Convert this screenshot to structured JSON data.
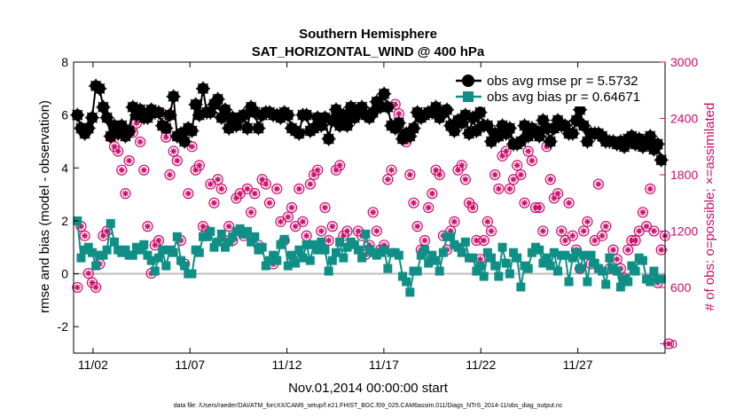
{
  "chart_data": {
    "type": "line",
    "title": "Southern Hemisphere",
    "subtitle": "SAT_HORIZONTAL_WIND @ 400 hPa",
    "xlabel": "Nov.01,2014 00:00:00 start",
    "ylabel": "rmse and bias (model - observation)",
    "ylabel_right": "# of obs: o=possible; ×=assimilated",
    "x_tick_labels": [
      "11/02",
      "11/07",
      "11/12",
      "11/17",
      "11/22",
      "11/27"
    ],
    "x_tick_days": [
      1,
      6,
      11,
      16,
      21,
      26
    ],
    "xlim_days": [
      0,
      30.5
    ],
    "ylim": [
      -3,
      8
    ],
    "y_ticks": [
      -2,
      0,
      2,
      4,
      6,
      8
    ],
    "ylim_right": [
      -100,
      3000
    ],
    "y_ticks_right": [
      0,
      600,
      1200,
      1800,
      2400,
      3000
    ],
    "grid": false,
    "legend_position": "top-right",
    "footnote": "data file: /Users/raeder/DAI/ATM_forcXX/CAM6_setup/f.e21.FHIST_BGC.f09_025.CAM6assim.011/Diags_NTrS_2014-11/obs_diag_output.nc",
    "colors": {
      "rmse": "#000000",
      "bias": "#0f8f86",
      "count": "#cc0b6a",
      "zero_line": "#bdbdbd"
    },
    "series": [
      {
        "name": "obs avg rmse pr = 5.5732",
        "axis": "left",
        "values": [
          6.0,
          5.5,
          5.3,
          5.5,
          5.9,
          7.1,
          7.0,
          6.3,
          5.9,
          5.2,
          5.6,
          5.3,
          5.6,
          5.2,
          5.4,
          6.3,
          6.0,
          6.2,
          5.9,
          5.9,
          6.2,
          6.1,
          6.1,
          5.6,
          5.5,
          6.0,
          6.7,
          5.2,
          5.3,
          5.0,
          5.5,
          5.4,
          6.4,
          6.0,
          7.0,
          6.1,
          6.1,
          6.4,
          6.6,
          5.9,
          6.2,
          5.5,
          5.9,
          5.6,
          5.9,
          6.0,
          5.5,
          6.3,
          6.1,
          5.5,
          6.0,
          6.1,
          6.1,
          6.0,
          6.0,
          5.9,
          6.1,
          6.0,
          5.5,
          5.4,
          5.3,
          6.0,
          6.0,
          5.4,
          5.5,
          5.9,
          5.6,
          5.9,
          5.1,
          5.8,
          6.2,
          5.6,
          6.0,
          5.6,
          6.3,
          5.9,
          6.2,
          6.3,
          6.0,
          5.9,
          6.1,
          6.5,
          6.3,
          6.8,
          6.3,
          5.6,
          5.5,
          5.7,
          5.1,
          5.3,
          5.2,
          5.5,
          6.1,
          5.9,
          6.0,
          6.1,
          6.1,
          6.3,
          5.9,
          6.1,
          6.2,
          5.6,
          5.4,
          5.8,
          5.7,
          6.0,
          5.3,
          5.9,
          5.4,
          6.1,
          5.6,
          5.6,
          5.0,
          5.3,
          5.2,
          5.6,
          5.3,
          5.5,
          4.9,
          4.9,
          5.0,
          5.6,
          5.2,
          5.5,
          5.4,
          5.2,
          5.8,
          5.5,
          5.0,
          5.5,
          5.8,
          5.6,
          5.6,
          5.3,
          5.3,
          5.8,
          6.2,
          5.6,
          5.0,
          5.3,
          5.3,
          5.3,
          5.2,
          5.0,
          5.0,
          5.0,
          4.9,
          5.0,
          4.8,
          5.1,
          5.2,
          4.9,
          5.1,
          4.8,
          4.9,
          5.2,
          4.7,
          4.9,
          4.3
        ]
      },
      {
        "name": "obs avg bias pr = 0.64671",
        "axis": "left",
        "values": [
          2.0,
          0.6,
          0.9,
          1.0,
          0.8,
          0.3,
          0.7,
          0.7,
          0.9,
          1.9,
          1.2,
          0.9,
          0.8,
          0.9,
          0.7,
          0.7,
          1.0,
          0.9,
          1.1,
          0.7,
          0.5,
          0.1,
          0.6,
          0.9,
          0.3,
          0.9,
          0.8,
          1.4,
          0.5,
          0.3,
          0.0,
          0.0,
          0.9,
          0.8,
          1.4,
          1.4,
          1.6,
          1.0,
          1.2,
          1.5,
          1.0,
          1.2,
          1.4,
          1.6,
          1.7,
          1.5,
          1.6,
          1.2,
          1.4,
          0.9,
          1.0,
          0.3,
          0.5,
          0.7,
          0.5,
          1.1,
          1.3,
          0.3,
          0.7,
          0.4,
          0.9,
          0.6,
          1.1,
          0.5,
          1.1,
          0.9,
          1.2,
          0.9,
          0.1,
          0.5,
          0.8,
          1.2,
          0.6,
          1.0,
          1.2,
          1.1,
          0.9,
          0.6,
          1.5,
          0.9,
          0.8,
          0.7,
          0.8,
          0.9,
          0.2,
          0.8,
          0.8,
          0.7,
          -0.1,
          -0.3,
          -0.7,
          0.1,
          0.1,
          0.7,
          0.9,
          0.4,
          0.7,
          0.5,
          0.1,
          0.8,
          1.4,
          1.4,
          1.1,
          1.0,
          0.8,
          1.2,
          0.6,
          0.6,
          0.1,
          0.3,
          -0.1,
          0.8,
          0.6,
          0.3,
          -0.1,
          1.0,
          0.4,
          0.0,
          0.8,
          0.6,
          -0.5,
          0.3,
          0.2,
          0.8,
          1.0,
          0.9,
          0.4,
          0.6,
          0.3,
          0.8,
          0.1,
          0.7,
          0.7,
          -0.3,
          0.6,
          0.8,
          0.2,
          0.7,
          -0.3,
          0.7,
          0.4,
          0.2,
          0.1,
          -0.4,
          0.6,
          0.2,
          0.1,
          -0.5,
          -0.2,
          -0.3,
          0.3,
          0.1,
          0.6,
          0.5,
          -0.2,
          -0.3,
          0.1,
          -0.2,
          -0.2
        ]
      },
      {
        "name": "obs possible",
        "axis": "right",
        "marker": "circle",
        "values": [
          600,
          1250,
          1150,
          750,
          650,
          600,
          850,
          1150,
          1200,
          2200,
          2100,
          2050,
          1850,
          1600,
          1950,
          2250,
          2350,
          2150,
          1850,
          1250,
          750,
          1050,
          1100,
          2450,
          2200,
          1800,
          2050,
          1950,
          1100,
          850,
          1600,
          2100,
          1850,
          1900,
          1250,
          1200,
          1700,
          1500,
          1750,
          1650,
          1100,
          1250,
          1100,
          1550,
          1600,
          1150,
          1650,
          1400,
          1600,
          1050,
          1750,
          1700,
          1500,
          850,
          1650,
          1300,
          1100,
          1350,
          1450,
          1250,
          1650,
          1300,
          1150,
          1700,
          1800,
          1850,
          1200,
          1450,
          1100,
          1250,
          1850,
          1900,
          1150,
          1200,
          2500,
          2450,
          1200,
          1150,
          950,
          1050,
          1400,
          1200,
          1000,
          1050,
          1750,
          1850,
          2550,
          2450,
          2200,
          2150,
          1800,
          1500,
          1250,
          1000,
          1100,
          1450,
          1600,
          1850,
          1800,
          1150,
          1000,
          1200,
          1300,
          1850,
          1900,
          1750,
          1500,
          1450,
          1100,
          900,
          1100,
          1300,
          1200,
          1800,
          1650,
          2000,
          2050,
          1650,
          1750,
          1900,
          1800,
          1500,
          2050,
          1950,
          1450,
          1450,
          1200,
          2100,
          1750,
          1550,
          1600,
          1200,
          1100,
          1500,
          1150,
          1000,
          800,
          1200,
          1300,
          850,
          1100,
          1700,
          1150,
          1250,
          800,
          1000,
          900,
          800,
          700,
          1000,
          1100,
          1100,
          1200,
          1400,
          1250,
          1650,
          1200,
          650,
          1000,
          1150,
          0
        ]
      }
    ]
  }
}
